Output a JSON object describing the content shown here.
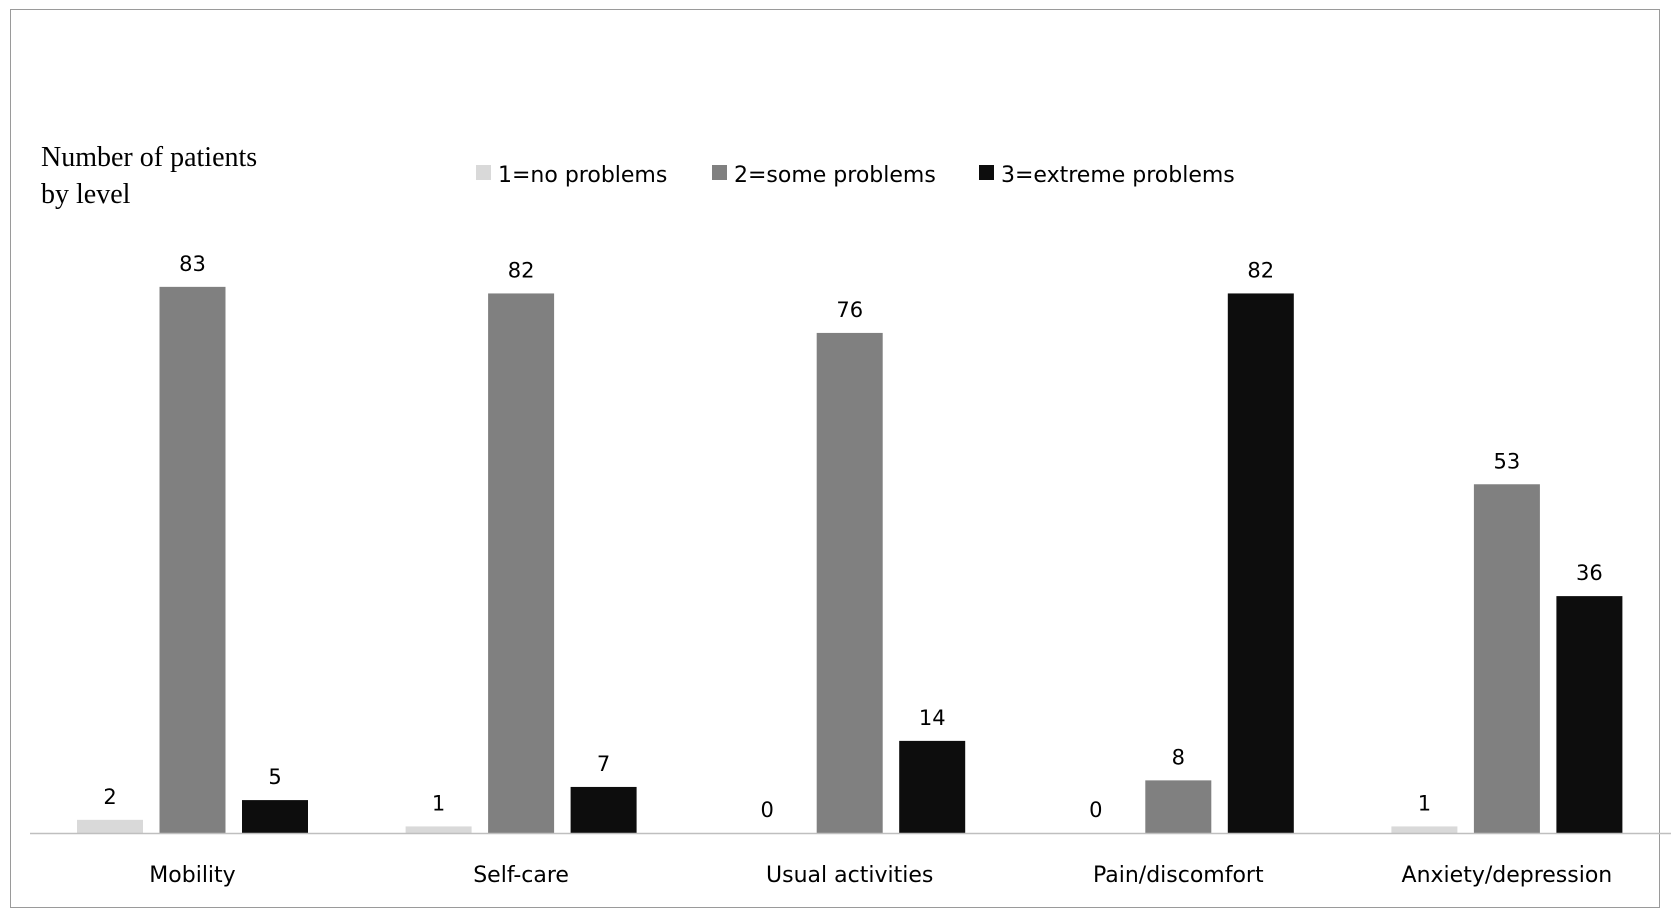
{
  "chart_data": {
    "type": "bar",
    "ylabel_lines": [
      "Number of patients",
      "by level"
    ],
    "categories": [
      "Mobility",
      "Self-care",
      "Usual activities",
      "Pain/discomfort",
      "Anxiety/depression"
    ],
    "series": [
      {
        "name": "1=no problems",
        "color": "#d9d9d9",
        "values": [
          2,
          1,
          0,
          0,
          1
        ]
      },
      {
        "name": "2=some problems",
        "color": "#808080",
        "values": [
          83,
          82,
          76,
          8,
          53
        ]
      },
      {
        "name": "3=extreme problems",
        "color": "#0d0d0d",
        "values": [
          5,
          7,
          14,
          82,
          36
        ]
      }
    ],
    "ylim": [
      0,
      100
    ],
    "grid": false,
    "legend_position": "top-center"
  }
}
